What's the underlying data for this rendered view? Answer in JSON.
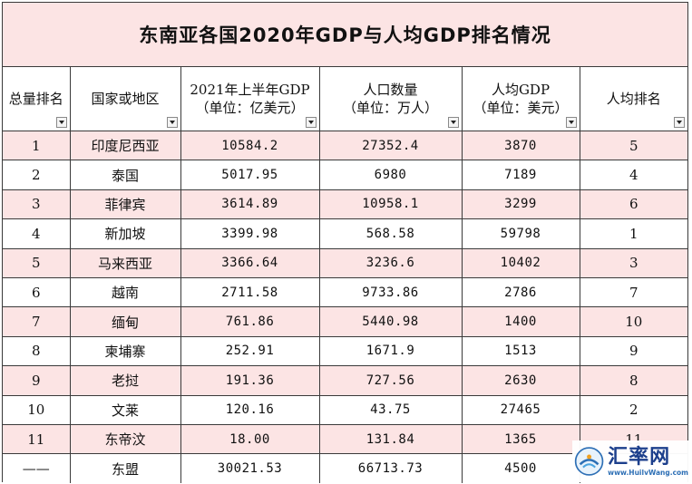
{
  "title": "东南亚各国2020年GDP与人均GDP排名情况",
  "headers": [
    {
      "line1": "总量排名",
      "line2": ""
    },
    {
      "line1": "国家或地区",
      "line2": ""
    },
    {
      "line1": "2021年上半年GDP",
      "line2": "（单位：亿美元）"
    },
    {
      "line1": "人口数量",
      "line2": "（单位：万人）"
    },
    {
      "line1": "人均GDP",
      "line2": "（单位：美元）"
    },
    {
      "line1": "人均排名",
      "line2": ""
    }
  ],
  "rows": [
    {
      "rank": "1",
      "country": "印度尼西亚",
      "gdp": "10584.2",
      "population": "27352.4",
      "gdp_per_capita": "3870",
      "per_capita_rank": "5"
    },
    {
      "rank": "2",
      "country": "泰国",
      "gdp": "5017.95",
      "population": "6980",
      "gdp_per_capita": "7189",
      "per_capita_rank": "4"
    },
    {
      "rank": "3",
      "country": "菲律宾",
      "gdp": "3614.89",
      "population": "10958.1",
      "gdp_per_capita": "3299",
      "per_capita_rank": "6"
    },
    {
      "rank": "4",
      "country": "新加坡",
      "gdp": "3399.98",
      "population": "568.58",
      "gdp_per_capita": "59798",
      "per_capita_rank": "1"
    },
    {
      "rank": "5",
      "country": "马来西亚",
      "gdp": "3366.64",
      "population": "3236.6",
      "gdp_per_capita": "10402",
      "per_capita_rank": "3"
    },
    {
      "rank": "6",
      "country": "越南",
      "gdp": "2711.58",
      "population": "9733.86",
      "gdp_per_capita": "2786",
      "per_capita_rank": "7"
    },
    {
      "rank": "7",
      "country": "缅甸",
      "gdp": "761.86",
      "population": "5440.98",
      "gdp_per_capita": "1400",
      "per_capita_rank": "10"
    },
    {
      "rank": "8",
      "country": "柬埔寨",
      "gdp": "252.91",
      "population": "1671.9",
      "gdp_per_capita": "1513",
      "per_capita_rank": "9"
    },
    {
      "rank": "9",
      "country": "老挝",
      "gdp": "191.36",
      "population": "727.56",
      "gdp_per_capita": "2630",
      "per_capita_rank": "8"
    },
    {
      "rank": "10",
      "country": "文莱",
      "gdp": "120.16",
      "population": "43.75",
      "gdp_per_capita": "27465",
      "per_capita_rank": "2"
    },
    {
      "rank": "11",
      "country": "东帝汶",
      "gdp": "18.00",
      "population": "131.84",
      "gdp_per_capita": "1365",
      "per_capita_rank": "11"
    },
    {
      "rank": "——",
      "country": "东盟",
      "gdp": "30021.53",
      "population": "66713.73",
      "gdp_per_capita": "4500",
      "per_capita_rank": ""
    }
  ],
  "row_colors": {
    "pink": "#fce4e4",
    "white": "#ffffff"
  },
  "watermark": {
    "name": "汇率网",
    "url": "www.HuilvWang.com"
  }
}
